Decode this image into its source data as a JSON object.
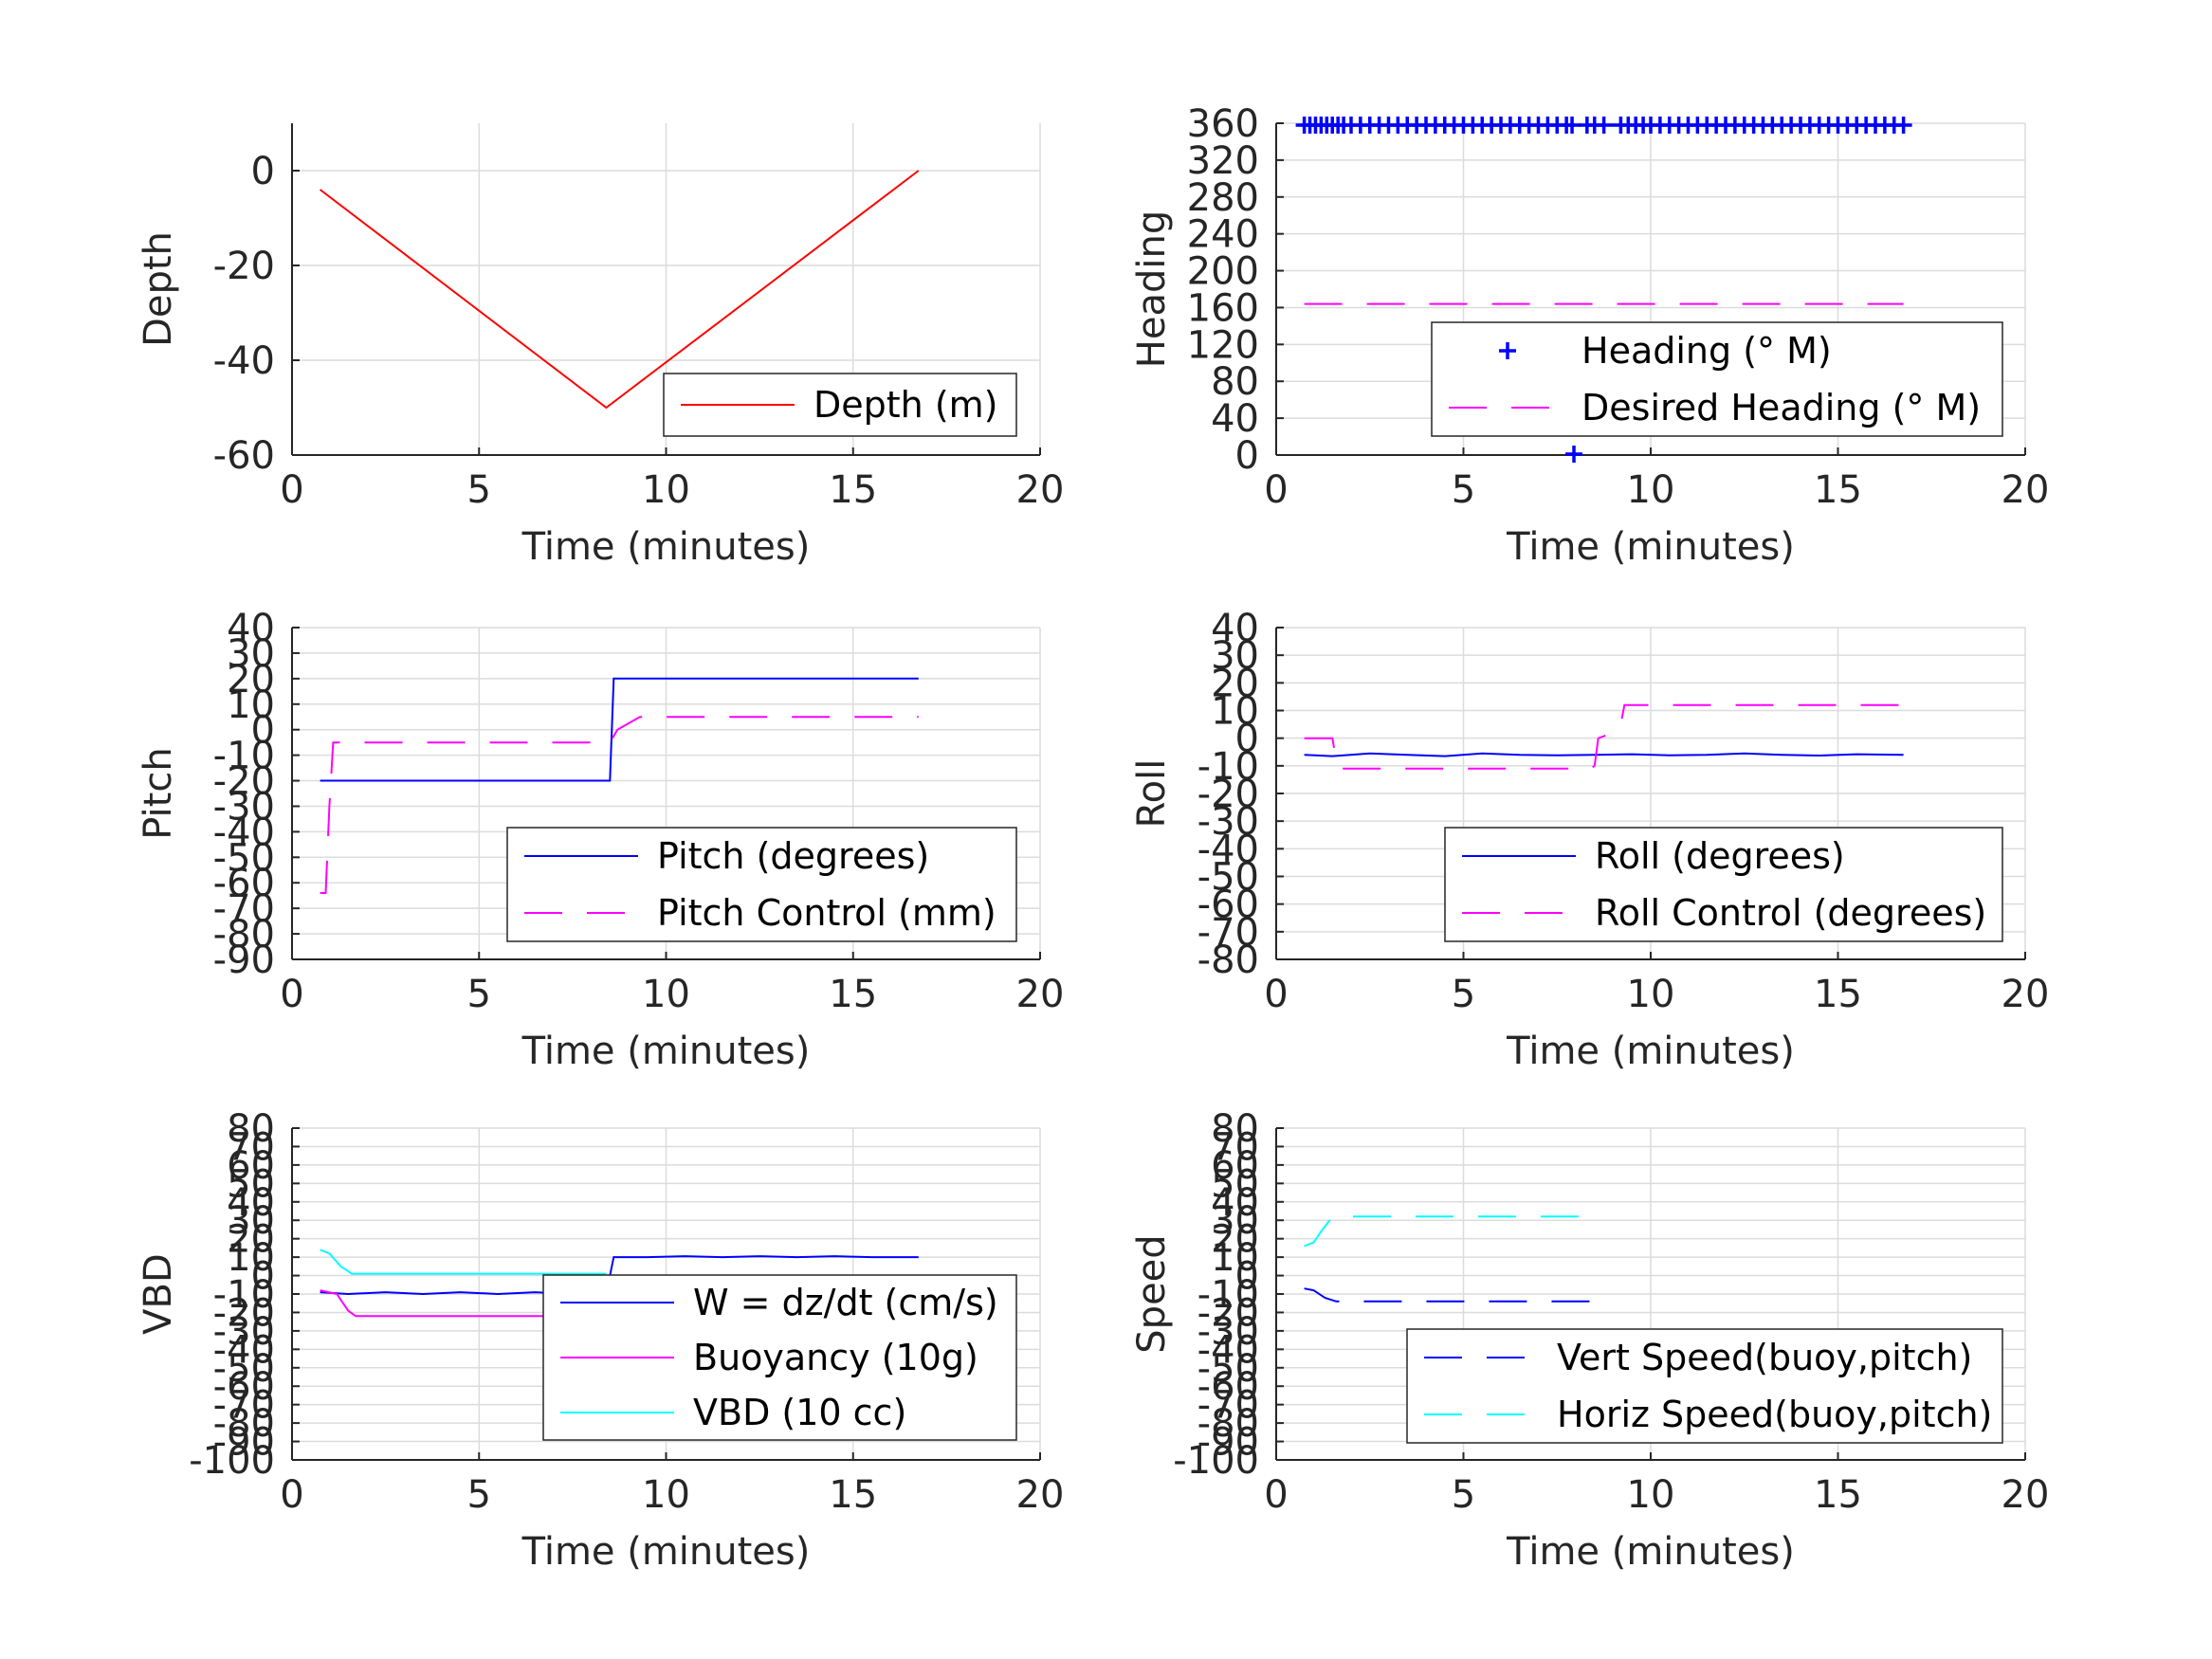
{
  "figure": {
    "background": "#ffffff",
    "axis_color": "#262626",
    "grid_color": "#dcdcdc"
  },
  "chart_data": [
    {
      "id": "depth",
      "type": "line",
      "xlabel": "Time (minutes)",
      "ylabel": "Depth",
      "xlim": [
        0,
        20
      ],
      "ylim": [
        -60,
        10
      ],
      "xticks": [
        0,
        5,
        10,
        15,
        20
      ],
      "yticks": [
        -60,
        -40,
        -20,
        0
      ],
      "grid": true,
      "legend_position": "bottom-right",
      "series": [
        {
          "name": "Depth (m)",
          "color": "#ff0000",
          "style": "solid",
          "x": [
            0.75,
            8.4,
            16.75
          ],
          "y": [
            -4,
            -50,
            0
          ]
        }
      ]
    },
    {
      "id": "heading",
      "type": "scatter",
      "xlabel": "Time (minutes)",
      "ylabel": "Heading",
      "xlim": [
        0,
        20
      ],
      "ylim": [
        0,
        360
      ],
      "xticks": [
        0,
        5,
        10,
        15,
        20
      ],
      "yticks": [
        0,
        40,
        80,
        120,
        160,
        200,
        240,
        280,
        320,
        360
      ],
      "grid": true,
      "legend_position": "middle-right",
      "series": [
        {
          "name": "Heading (° M)",
          "color": "#0000ff",
          "style": "plus",
          "x": [
            0.75,
            0.9,
            1.05,
            1.2,
            1.35,
            1.5,
            1.65,
            1.8,
            2.0,
            2.25,
            2.5,
            2.75,
            3.0,
            3.25,
            3.5,
            3.75,
            4.0,
            4.25,
            4.5,
            4.75,
            5.0,
            5.25,
            5.5,
            5.75,
            6.0,
            6.25,
            6.5,
            6.75,
            7.0,
            7.25,
            7.5,
            7.75,
            7.9,
            8.3,
            8.5,
            8.75,
            9.2,
            9.4,
            9.6,
            9.8,
            10.0,
            10.25,
            10.5,
            10.75,
            11.0,
            11.25,
            11.5,
            11.75,
            12.0,
            12.25,
            12.5,
            12.75,
            13.0,
            13.25,
            13.5,
            13.75,
            14.0,
            14.25,
            14.5,
            14.75,
            15.0,
            15.25,
            15.5,
            15.75,
            16.0,
            16.25,
            16.5,
            16.75,
            7.95
          ],
          "y": [
            358,
            358,
            358,
            358,
            358,
            358,
            358,
            358,
            358,
            358,
            358,
            358,
            358,
            358,
            358,
            358,
            358,
            358,
            358,
            358,
            358,
            358,
            358,
            358,
            358,
            358,
            358,
            358,
            358,
            358,
            358,
            358,
            358,
            358,
            358,
            358,
            358,
            358,
            358,
            358,
            358,
            358,
            358,
            358,
            358,
            358,
            358,
            358,
            358,
            358,
            358,
            358,
            358,
            358,
            358,
            358,
            358,
            358,
            358,
            358,
            358,
            358,
            358,
            358,
            358,
            358,
            358,
            358,
            1
          ]
        },
        {
          "name": "Desired Heading (° M)",
          "color": "#ff00ff",
          "style": "dashed",
          "x": [
            0.75,
            16.75
          ],
          "y": [
            164,
            164
          ]
        }
      ]
    },
    {
      "id": "pitch",
      "type": "line",
      "xlabel": "Time (minutes)",
      "ylabel": "Pitch",
      "xlim": [
        0,
        20
      ],
      "ylim": [
        -90,
        40
      ],
      "xticks": [
        0,
        5,
        10,
        15,
        20
      ],
      "yticks": [
        -90,
        -80,
        -70,
        -60,
        -50,
        -40,
        -30,
        -20,
        -10,
        0,
        10,
        20,
        30,
        40
      ],
      "grid": true,
      "legend_position": "bottom-right",
      "series": [
        {
          "name": "Pitch (degrees)",
          "color": "#0000ff",
          "style": "solid",
          "x": [
            0.75,
            8.5,
            8.6,
            16.75
          ],
          "y": [
            -20,
            -20,
            20,
            20
          ]
        },
        {
          "name": "Pitch Control (mm)",
          "color": "#ff00ff",
          "style": "dashed",
          "x": [
            0.75,
            0.9,
            1.0,
            1.1,
            8.5,
            8.7,
            9.3,
            9.5,
            16.75
          ],
          "y": [
            -64,
            -64,
            -30,
            -5,
            -5,
            0,
            5,
            5,
            5
          ]
        }
      ]
    },
    {
      "id": "roll",
      "type": "line",
      "xlabel": "Time (minutes)",
      "ylabel": "Roll",
      "xlim": [
        0,
        20
      ],
      "ylim": [
        -80,
        40
      ],
      "xticks": [
        0,
        5,
        10,
        15,
        20
      ],
      "yticks": [
        -80,
        -70,
        -60,
        -50,
        -40,
        -30,
        -20,
        -10,
        0,
        10,
        20,
        30,
        40
      ],
      "grid": true,
      "legend_position": "bottom-right",
      "series": [
        {
          "name": "Roll (degrees)",
          "color": "#0000ff",
          "style": "solid",
          "x": [
            0.75,
            1.5,
            2.5,
            3.5,
            4.5,
            5.5,
            6.5,
            7.5,
            8.5,
            9.5,
            10.5,
            11.5,
            12.5,
            13.5,
            14.5,
            15.5,
            16.75
          ],
          "y": [
            -6,
            -6.5,
            -5.5,
            -6,
            -6.5,
            -5.5,
            -6,
            -6.2,
            -6,
            -5.8,
            -6.2,
            -6,
            -5.5,
            -6,
            -6.3,
            -5.8,
            -6
          ]
        },
        {
          "name": "Roll Control (degrees)",
          "color": "#ff00ff",
          "style": "dashed",
          "x": [
            0.75,
            1.5,
            1.6,
            1.7,
            8.4,
            8.5,
            8.6,
            8.8,
            9.2,
            9.3,
            16.75
          ],
          "y": [
            0,
            0,
            -8,
            -11,
            -11,
            -10,
            0,
            1,
            5,
            12,
            12
          ]
        }
      ]
    },
    {
      "id": "vbd",
      "type": "line",
      "xlabel": "Time (minutes)",
      "ylabel": "VBD",
      "xlim": [
        0,
        20
      ],
      "ylim": [
        -100,
        80
      ],
      "xticks": [
        0,
        5,
        10,
        15,
        20
      ],
      "yticks": [
        -100,
        -90,
        -80,
        -70,
        -60,
        -50,
        -40,
        -30,
        -20,
        -10,
        0,
        10,
        20,
        30,
        40,
        50,
        60,
        70,
        80
      ],
      "grid": true,
      "legend_position": "bottom-right",
      "series": [
        {
          "name": "W = dz/dt (cm/s)",
          "color": "#0000ff",
          "style": "solid",
          "x": [
            0.75,
            1.5,
            2.5,
            3.5,
            4.5,
            5.5,
            6.5,
            7.5,
            8.3,
            8.5,
            8.6,
            9.5,
            10.5,
            11.5,
            12.5,
            13.5,
            14.5,
            15.5,
            16.75
          ],
          "y": [
            -9,
            -10,
            -9,
            -10,
            -9,
            -10,
            -9,
            -10,
            -9,
            0,
            10,
            10,
            10.5,
            10,
            10.5,
            10,
            10.5,
            10,
            10
          ]
        },
        {
          "name": "Buoyancy (10g)",
          "color": "#ff00ff",
          "style": "solid",
          "x": [
            0.75,
            1.2,
            1.5,
            1.7,
            8.4
          ],
          "y": [
            -8,
            -10,
            -19,
            -22,
            -22
          ]
        },
        {
          "name": "VBD (10 cc)",
          "color": "#00ffff",
          "style": "solid",
          "x": [
            0.75,
            1.0,
            1.3,
            1.6,
            8.4
          ],
          "y": [
            14,
            12,
            5,
            1,
            1
          ]
        }
      ]
    },
    {
      "id": "speed",
      "type": "line",
      "xlabel": "Time (minutes)",
      "ylabel": "Speed",
      "xlim": [
        0,
        20
      ],
      "ylim": [
        -100,
        80
      ],
      "xticks": [
        0,
        5,
        10,
        15,
        20
      ],
      "yticks": [
        -100,
        -90,
        -80,
        -70,
        -60,
        -50,
        -40,
        -30,
        -20,
        -10,
        0,
        10,
        20,
        30,
        40,
        50,
        60,
        70,
        80
      ],
      "grid": true,
      "legend_position": "bottom-right",
      "series": [
        {
          "name": "Vert Speed(buoy,pitch)",
          "color": "#0000ff",
          "style": "dashed",
          "x": [
            0.75,
            1.0,
            1.3,
            1.6,
            8.4
          ],
          "y": [
            -7,
            -8,
            -12,
            -14,
            -14
          ]
        },
        {
          "name": "Horiz Speed(buoy,pitch)",
          "color": "#00ffff",
          "style": "dashed",
          "x": [
            0.75,
            1.0,
            1.2,
            1.5,
            8.4
          ],
          "y": [
            16,
            18,
            24,
            32,
            32
          ]
        }
      ]
    }
  ]
}
